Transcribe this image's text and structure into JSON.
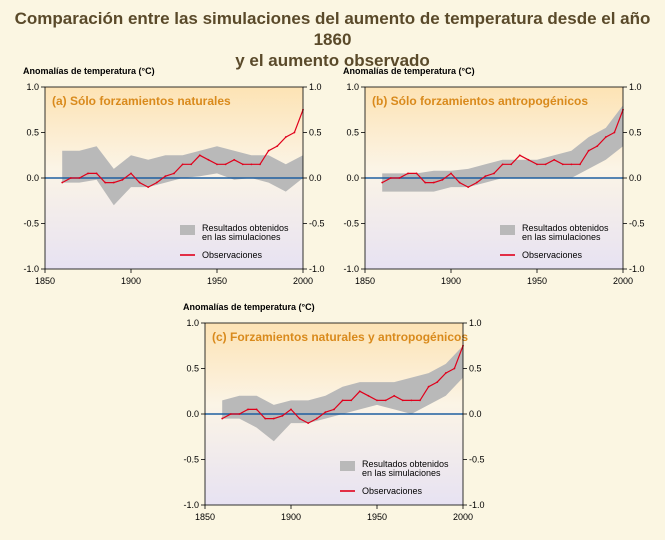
{
  "title": {
    "line1": "Comparación entre las simulaciones del aumento de temperatura desde el año 1860",
    "line2": "y el aumento observado"
  },
  "colors": {
    "background": "#fbf6e2",
    "title": "#5a4a2a",
    "panel_title": "#d98a1c",
    "simulation_band": "#b9b9b9",
    "observations": "#e0001b",
    "zero_line": "#1f5fa0",
    "plot_top": "#fde3b4",
    "plot_bottom": "#e7e2f2"
  },
  "chart_data": [
    {
      "type": "area",
      "title": "(a) Sólo forzamientos naturales",
      "ylabel": "Anomalías de temperatura (°C)",
      "xlim": [
        1850,
        2000
      ],
      "ylim": [
        -1.0,
        1.0
      ],
      "x_ticks": [
        "1850",
        "1900",
        "1950",
        "2000"
      ],
      "y_ticks": [
        "1.0",
        "0.5",
        "0.0",
        "-0.5",
        "-1.0"
      ],
      "legend": {
        "band_line1": "Resultados obtenidos",
        "band_line2": "en las simulaciones",
        "observations": "Observaciones",
        "position": "lower-right"
      },
      "series": [
        {
          "name": "Resultados obtenidos en las simulaciones",
          "kind": "band",
          "x": [
            1860,
            1870,
            1880,
            1890,
            1900,
            1910,
            1920,
            1930,
            1940,
            1950,
            1960,
            1970,
            1980,
            1990,
            2000
          ],
          "lower": [
            -0.05,
            -0.05,
            -0.02,
            -0.3,
            -0.1,
            -0.1,
            -0.05,
            0.0,
            0.02,
            0.05,
            -0.02,
            0.0,
            -0.05,
            -0.15,
            0.0
          ],
          "upper": [
            0.3,
            0.3,
            0.35,
            0.1,
            0.25,
            0.2,
            0.25,
            0.25,
            0.3,
            0.35,
            0.3,
            0.25,
            0.25,
            0.15,
            0.25
          ]
        },
        {
          "name": "Observaciones",
          "kind": "line",
          "x": [
            1860,
            1865,
            1870,
            1875,
            1880,
            1885,
            1890,
            1895,
            1900,
            1905,
            1910,
            1915,
            1920,
            1925,
            1930,
            1935,
            1940,
            1945,
            1950,
            1955,
            1960,
            1965,
            1970,
            1975,
            1980,
            1985,
            1990,
            1995,
            2000
          ],
          "y": [
            -0.05,
            0.0,
            0.0,
            0.05,
            0.05,
            -0.05,
            -0.05,
            -0.02,
            0.05,
            -0.05,
            -0.1,
            -0.05,
            0.02,
            0.05,
            0.15,
            0.15,
            0.25,
            0.2,
            0.15,
            0.15,
            0.2,
            0.15,
            0.15,
            0.15,
            0.3,
            0.35,
            0.45,
            0.5,
            0.75
          ]
        }
      ]
    },
    {
      "type": "area",
      "title": "(b) Sólo forzamientos antropogénicos",
      "ylabel": "Anomalías de temperatura (°C)",
      "xlim": [
        1850,
        2000
      ],
      "ylim": [
        -1.0,
        1.0
      ],
      "x_ticks": [
        "1850",
        "1900",
        "1950",
        "2000"
      ],
      "y_ticks": [
        "1.0",
        "0.5",
        "0.0",
        "-0.5",
        "-1.0"
      ],
      "legend": {
        "band_line1": "Resultados obtenidos",
        "band_line2": "en las simulaciones",
        "observations": "Observaciones",
        "position": "lower-right"
      },
      "series": [
        {
          "name": "Resultados obtenidos en las simulaciones",
          "kind": "band",
          "x": [
            1860,
            1870,
            1880,
            1890,
            1900,
            1910,
            1920,
            1930,
            1940,
            1950,
            1960,
            1970,
            1980,
            1990,
            2000
          ],
          "lower": [
            -0.15,
            -0.15,
            -0.15,
            -0.15,
            -0.1,
            -0.1,
            -0.05,
            0.0,
            0.0,
            0.0,
            0.0,
            0.0,
            0.1,
            0.2,
            0.35
          ],
          "upper": [
            0.05,
            0.05,
            0.05,
            0.08,
            0.08,
            0.1,
            0.15,
            0.2,
            0.2,
            0.2,
            0.25,
            0.3,
            0.45,
            0.55,
            0.8
          ]
        },
        {
          "name": "Observaciones",
          "kind": "line",
          "x": [
            1860,
            1865,
            1870,
            1875,
            1880,
            1885,
            1890,
            1895,
            1900,
            1905,
            1910,
            1915,
            1920,
            1925,
            1930,
            1935,
            1940,
            1945,
            1950,
            1955,
            1960,
            1965,
            1970,
            1975,
            1980,
            1985,
            1990,
            1995,
            2000
          ],
          "y": [
            -0.05,
            0.0,
            0.0,
            0.05,
            0.05,
            -0.05,
            -0.05,
            -0.02,
            0.05,
            -0.05,
            -0.1,
            -0.05,
            0.02,
            0.05,
            0.15,
            0.15,
            0.25,
            0.2,
            0.15,
            0.15,
            0.2,
            0.15,
            0.15,
            0.15,
            0.3,
            0.35,
            0.45,
            0.5,
            0.75
          ]
        }
      ]
    },
    {
      "type": "area",
      "title": "(c) Forzamientos naturales y antropogénicos",
      "ylabel": "Anomalías de temperatura (°C)",
      "xlim": [
        1850,
        2000
      ],
      "ylim": [
        -1.0,
        1.0
      ],
      "x_ticks": [
        "1850",
        "1900",
        "1950",
        "2000"
      ],
      "y_ticks": [
        "1.0",
        "0.5",
        "0.0",
        "-0.5",
        "-1.0"
      ],
      "legend": {
        "band_line1": "Resultados obtenidos",
        "band_line2": "en las simulaciones",
        "observations": "Observaciones",
        "position": "lower-right"
      },
      "series": [
        {
          "name": "Resultados obtenidos en las simulaciones",
          "kind": "band",
          "x": [
            1860,
            1870,
            1880,
            1890,
            1900,
            1910,
            1920,
            1930,
            1940,
            1950,
            1960,
            1970,
            1980,
            1990,
            2000
          ],
          "lower": [
            -0.05,
            -0.05,
            -0.15,
            -0.3,
            -0.1,
            -0.1,
            -0.05,
            0.0,
            0.05,
            0.1,
            0.05,
            0.0,
            0.1,
            0.2,
            0.4
          ],
          "upper": [
            0.15,
            0.2,
            0.2,
            0.1,
            0.15,
            0.15,
            0.2,
            0.3,
            0.35,
            0.35,
            0.35,
            0.4,
            0.45,
            0.55,
            0.75
          ]
        },
        {
          "name": "Observaciones",
          "kind": "line",
          "x": [
            1860,
            1865,
            1870,
            1875,
            1880,
            1885,
            1890,
            1895,
            1900,
            1905,
            1910,
            1915,
            1920,
            1925,
            1930,
            1935,
            1940,
            1945,
            1950,
            1955,
            1960,
            1965,
            1970,
            1975,
            1980,
            1985,
            1990,
            1995,
            2000
          ],
          "y": [
            -0.05,
            0.0,
            0.0,
            0.05,
            0.05,
            -0.05,
            -0.05,
            -0.02,
            0.05,
            -0.05,
            -0.1,
            -0.05,
            0.02,
            0.05,
            0.15,
            0.15,
            0.25,
            0.2,
            0.15,
            0.15,
            0.2,
            0.15,
            0.15,
            0.15,
            0.3,
            0.35,
            0.45,
            0.5,
            0.75
          ]
        }
      ]
    }
  ]
}
